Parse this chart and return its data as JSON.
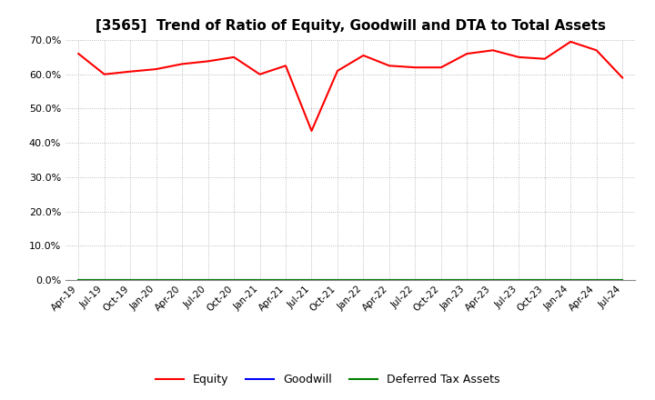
{
  "title": "[3565]  Trend of Ratio of Equity, Goodwill and DTA to Total Assets",
  "x_labels": [
    "Apr-19",
    "Jul-19",
    "Oct-19",
    "Jan-20",
    "Apr-20",
    "Jul-20",
    "Oct-20",
    "Jan-21",
    "Apr-21",
    "Jul-21",
    "Oct-21",
    "Jan-22",
    "Apr-22",
    "Jul-22",
    "Oct-22",
    "Jan-23",
    "Apr-23",
    "Jul-23",
    "Oct-23",
    "Jan-24",
    "Apr-24",
    "Jul-24"
  ],
  "equity": [
    0.66,
    0.6,
    0.608,
    0.615,
    0.63,
    0.638,
    0.65,
    0.6,
    0.625,
    0.435,
    0.61,
    0.655,
    0.625,
    0.62,
    0.62,
    0.66,
    0.67,
    0.65,
    0.645,
    0.695,
    0.67,
    0.59
  ],
  "goodwill": [
    0.0,
    0.0,
    0.0,
    0.0,
    0.0,
    0.0,
    0.0,
    0.0,
    0.0,
    0.0,
    0.0,
    0.0,
    0.0,
    0.0,
    0.0,
    0.0,
    0.0,
    0.0,
    0.0,
    0.0,
    0.0,
    0.0
  ],
  "dta": [
    0.0,
    0.0,
    0.0,
    0.0,
    0.0,
    0.0,
    0.0,
    0.0,
    0.0,
    0.0,
    0.0,
    0.0,
    0.0,
    0.0,
    0.0,
    0.0,
    0.0,
    0.0,
    0.0,
    0.0,
    0.0,
    0.0
  ],
  "equity_color": "#FF0000",
  "goodwill_color": "#0000FF",
  "dta_color": "#008000",
  "ylim": [
    0.0,
    0.7
  ],
  "yticks": [
    0.0,
    0.1,
    0.2,
    0.3,
    0.4,
    0.5,
    0.6,
    0.7
  ],
  "background_color": "#FFFFFF",
  "plot_bg_color": "#FFFFFF",
  "grid_color": "#AAAAAA",
  "title_fontsize": 11,
  "legend_labels": [
    "Equity",
    "Goodwill",
    "Deferred Tax Assets"
  ]
}
